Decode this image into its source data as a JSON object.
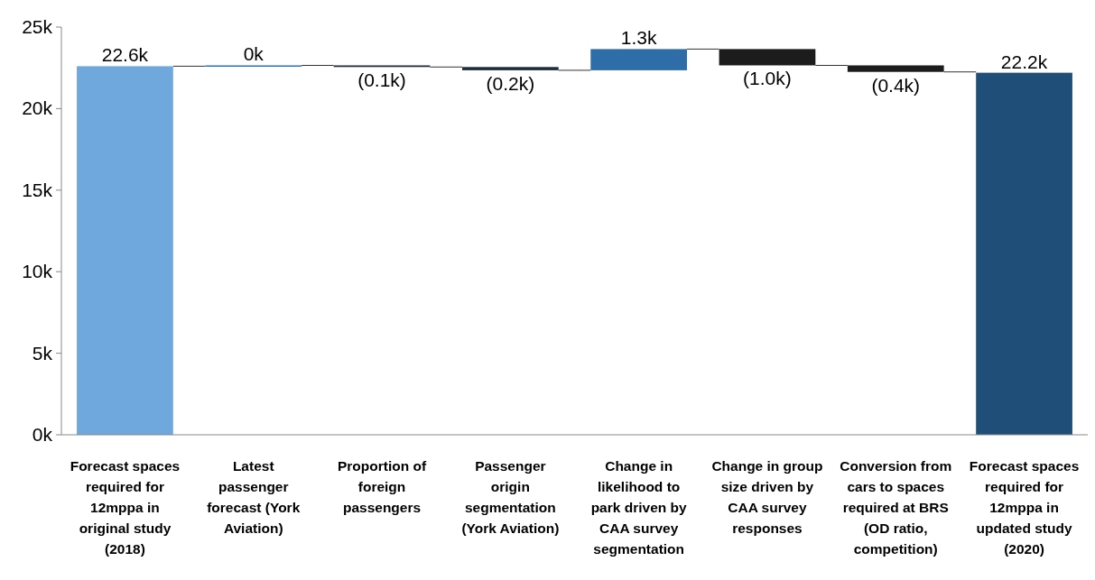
{
  "chart_data": {
    "type": "bar",
    "categories": [
      "Forecast spaces required for 12mppa in original study (2018)",
      "Latest passenger forecast (York Aviation)",
      "Proportion of foreign passengers",
      "Passenger origin segmentation (York Aviation)",
      "Change in likelihood  to park driven by CAA survey segmentation",
      "Change in group size driven by CAA survey responses",
      "Conversion from cars to spaces required at BRS (OD ratio, competition)",
      "Forecast spaces required for 12mppa in updated study (2020)"
    ],
    "values": [
      22.6,
      0.05,
      -0.1,
      -0.2,
      1.3,
      -1.0,
      -0.4,
      22.2
    ],
    "base": [
      0,
      22.6,
      22.65,
      22.55,
      22.35,
      23.65,
      22.65,
      0
    ],
    "colors": [
      "#6fa8dc",
      "#2e75b6",
      "#1f2d3d",
      "#1f2d3d",
      "#2e6da8",
      "#1c1c1c",
      "#1c1c1c",
      "#1f4e79"
    ],
    "value_labels": [
      "22.6k",
      "0k",
      "(0.1k)",
      "(0.2k)",
      "1.3k",
      "(1.0k)",
      "(0.4k)",
      "22.2k"
    ],
    "ylim": [
      0,
      25
    ],
    "yticks": [
      {
        "value": 0,
        "label": "0k"
      },
      {
        "value": 5,
        "label": "5k"
      },
      {
        "value": 10,
        "label": "10k"
      },
      {
        "value": 15,
        "label": "15k"
      },
      {
        "value": 20,
        "label": "20k"
      },
      {
        "value": 25,
        "label": "25k"
      }
    ],
    "title": null
  }
}
